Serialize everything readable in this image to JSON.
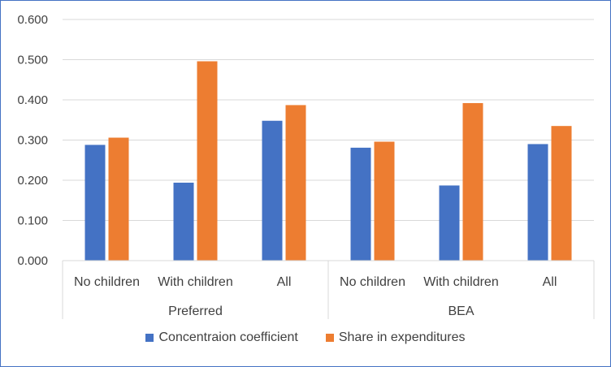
{
  "chart_data": {
    "type": "bar",
    "groups": [
      {
        "label": "Preferred",
        "categories": [
          "No children",
          "With children",
          "All"
        ]
      },
      {
        "label": "BEA",
        "categories": [
          "No children",
          "With children",
          "All"
        ]
      }
    ],
    "series": [
      {
        "name": "Concentraion coefficient",
        "color": "#4472c4",
        "values": [
          0.288,
          0.194,
          0.348,
          0.281,
          0.187,
          0.29
        ]
      },
      {
        "name": "Share in expenditures",
        "color": "#ed7d31",
        "values": [
          0.306,
          0.496,
          0.387,
          0.296,
          0.392,
          0.335
        ]
      }
    ],
    "ylim": [
      0,
      0.6
    ],
    "yticks": [
      "0.000",
      "0.100",
      "0.200",
      "0.300",
      "0.400",
      "0.500",
      "0.600"
    ],
    "grid": true,
    "legend_position": "bottom"
  }
}
